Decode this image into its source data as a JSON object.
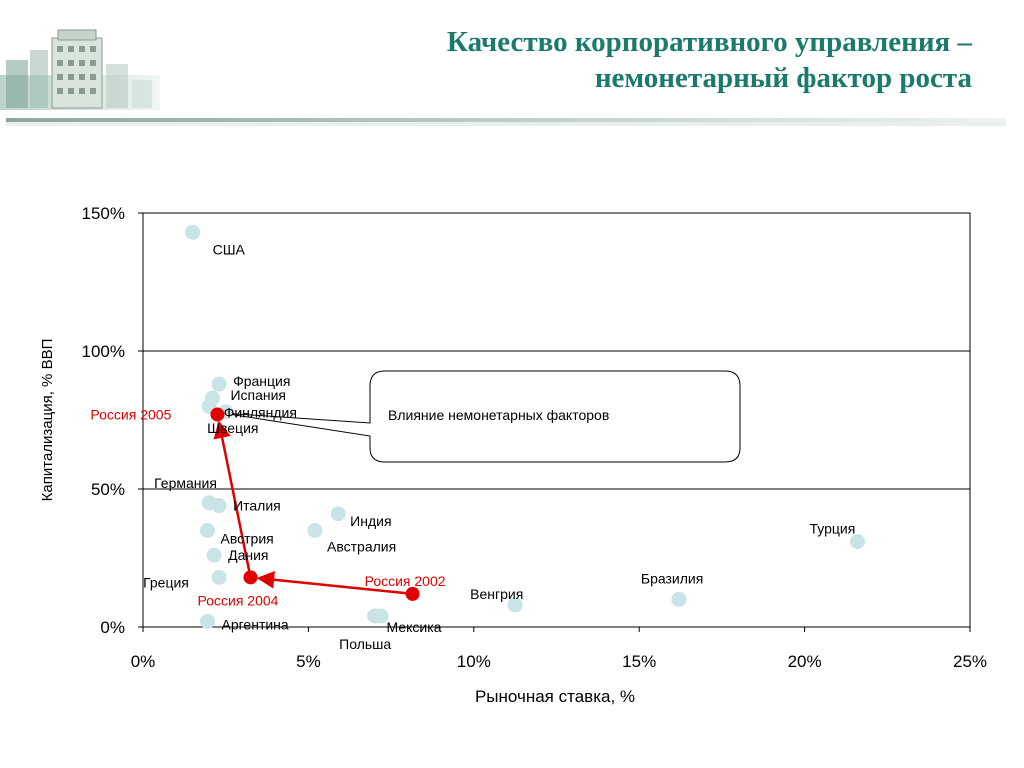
{
  "header": {
    "title_line1": "Качество корпоративного управления –",
    "title_line2": "немонетарный фактор роста"
  },
  "colors": {
    "title": "#1a7a6b",
    "country_marker": "#c9e4e6",
    "russia_marker": "#e00000",
    "path_line": "#e00000"
  },
  "callout": {
    "text": "Влияние немонетарных факторов"
  },
  "chart_data": {
    "type": "scatter",
    "title": "",
    "xlabel": "Рыночная ставка, %",
    "ylabel": "Капитализация, % ВВП",
    "xlim": [
      0,
      25
    ],
    "ylim": [
      0,
      150
    ],
    "x_ticks": [
      0,
      5,
      10,
      15,
      20,
      25
    ],
    "x_tick_labels": [
      "0%",
      "5%",
      "10%",
      "15%",
      "20%",
      "25%"
    ],
    "y_ticks": [
      0,
      50,
      100,
      150
    ],
    "y_tick_labels": [
      "0%",
      "50%",
      "100%",
      "150%"
    ],
    "grid": "horizontal",
    "series": [
      {
        "name": "",
        "points": [
          {
            "label": "США",
            "x": 1.5,
            "y": 143
          },
          {
            "label": "Франция",
            "x": 2.3,
            "y": 88
          },
          {
            "label": "Испания",
            "x": 2.1,
            "y": 83
          },
          {
            "label": "Финляндия",
            "x": 2.5,
            "y": 78
          },
          {
            "label": "Швеция",
            "x": 2.0,
            "y": 80
          },
          {
            "label": "Германия",
            "x": 2.0,
            "y": 45
          },
          {
            "label": "Италия",
            "x": 2.3,
            "y": 44
          },
          {
            "label": "Австрия",
            "x": 1.95,
            "y": 35
          },
          {
            "label": "Дания",
            "x": 2.15,
            "y": 26
          },
          {
            "label": "Греция",
            "x": 2.3,
            "y": 18
          },
          {
            "label": "Аргентина",
            "x": 1.95,
            "y": 2
          },
          {
            "label": "Индия",
            "x": 5.9,
            "y": 41
          },
          {
            "label": "Австралия",
            "x": 5.2,
            "y": 35
          },
          {
            "label": "Мексика",
            "x": 7.0,
            "y": 4
          },
          {
            "label": "Польша",
            "x": 7.2,
            "y": 4
          },
          {
            "label": "Венгрия",
            "x": 11.25,
            "y": 8
          },
          {
            "label": "Бразилия",
            "x": 16.2,
            "y": 10
          },
          {
            "label": "Турция",
            "x": 21.6,
            "y": 31
          }
        ]
      },
      {
        "name": "",
        "points": [
          {
            "label": "Россия 2002",
            "x": 8.15,
            "y": 12
          },
          {
            "label": "Россия 2004",
            "x": 3.25,
            "y": 18
          },
          {
            "label": "Россия 2005",
            "x": 2.25,
            "y": 77
          }
        ]
      }
    ]
  }
}
